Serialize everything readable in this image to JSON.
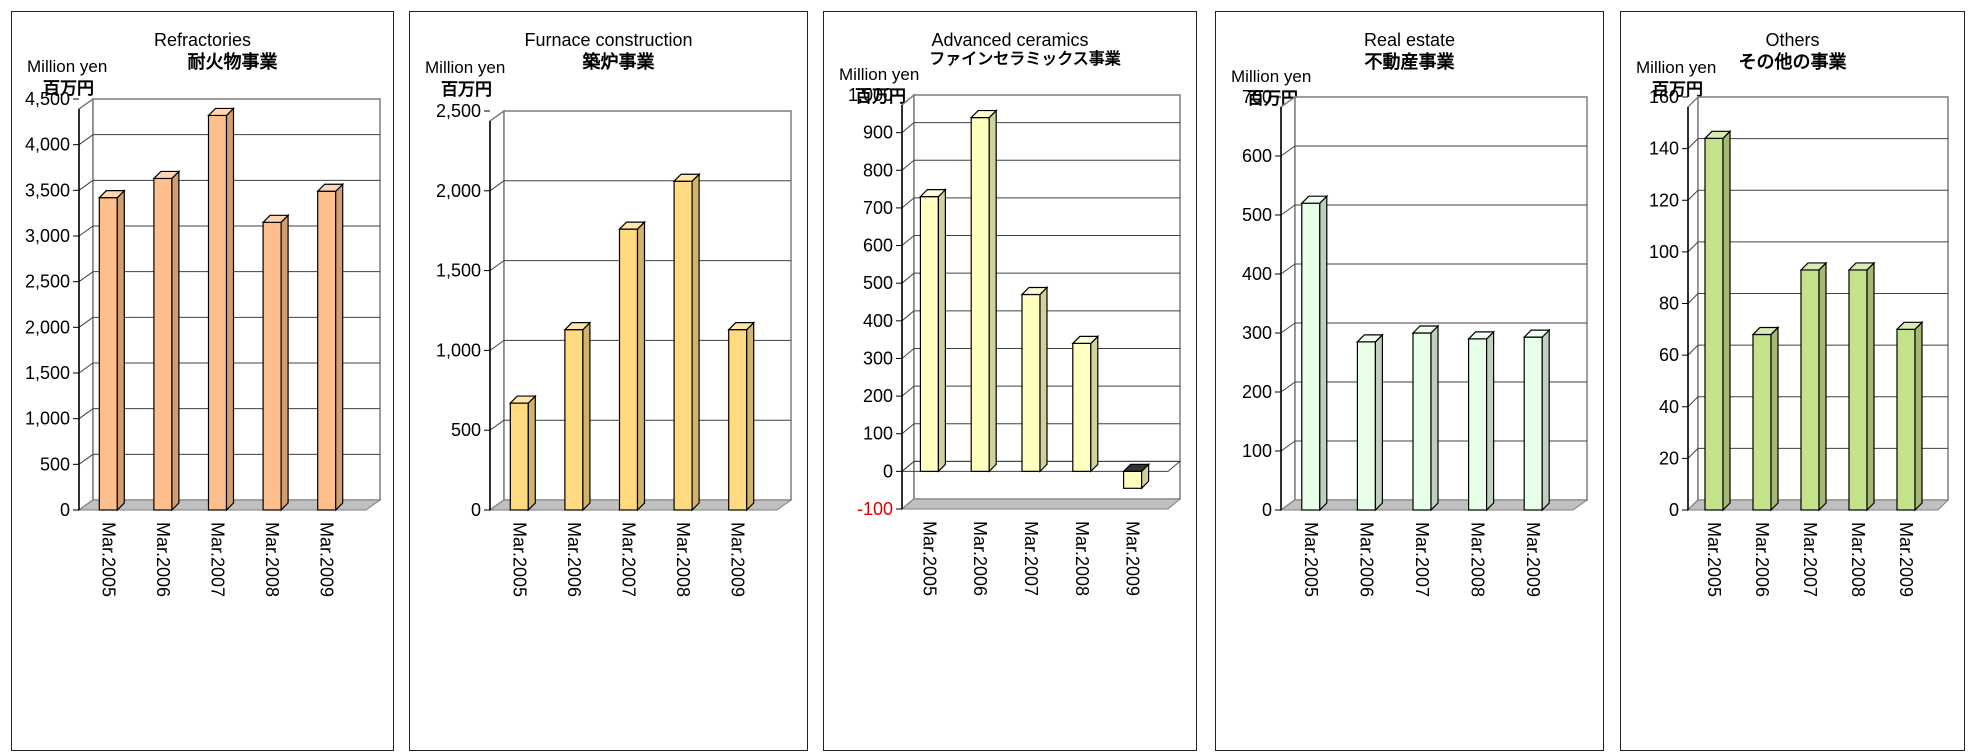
{
  "chart_data": [
    {
      "type": "bar",
      "title": "Refractories",
      "subtitle": "耐火物事業",
      "ylabel": "Million yen",
      "ylabel2": "百万円",
      "categories": [
        "Mar.2005",
        "Mar.2006",
        "Mar.2007",
        "Mar.2008",
        "Mar.2009"
      ],
      "values": [
        3420,
        3630,
        4320,
        3150,
        3490
      ],
      "ylim": [
        0,
        4500
      ],
      "yticks": [
        "0",
        "500",
        "1,000",
        "1,500",
        "2,000",
        "2,500",
        "3,000",
        "3,500",
        "4,000",
        "4,500"
      ],
      "color": "#FFBF8C"
    },
    {
      "type": "bar",
      "title": "Furnace construction",
      "subtitle": "築炉事業",
      "ylabel": "Million yen",
      "ylabel2": "百万円",
      "categories": [
        "Mar.2005",
        "Mar.2006",
        "Mar.2007",
        "Mar.2008",
        "Mar.2009"
      ],
      "values": [
        670,
        1130,
        1760,
        2060,
        1130
      ],
      "ylim": [
        0,
        2500
      ],
      "yticks": [
        "0",
        "500",
        "1,000",
        "1,500",
        "2,000",
        "2,500"
      ],
      "color": "#FFDA80"
    },
    {
      "type": "bar",
      "title": "Advanced ceramics",
      "subtitle": "ファインセラミックス事業",
      "ylabel": "Million yen",
      "ylabel2": "百万円",
      "categories": [
        "Mar.2005",
        "Mar.2006",
        "Mar.2007",
        "Mar.2008",
        "Mar.2009"
      ],
      "values": [
        730,
        940,
        470,
        340,
        -45
      ],
      "ylim": [
        -100,
        1000
      ],
      "yticks": [
        "-100",
        "0",
        "100",
        "200",
        "300",
        "400",
        "500",
        "600",
        "700",
        "800",
        "900",
        "1,000"
      ],
      "negative_tick_color": "#E00000",
      "color": "#FFFFC0"
    },
    {
      "type": "bar",
      "title": "Real estate",
      "subtitle": "不動産事業",
      "ylabel": "Million yen",
      "ylabel2": "百万円",
      "categories": [
        "Mar.2005",
        "Mar.2006",
        "Mar.2007",
        "Mar.2008",
        "Mar.2009"
      ],
      "values": [
        520,
        285,
        300,
        290,
        293
      ],
      "ylim": [
        0,
        700
      ],
      "yticks": [
        "0",
        "100",
        "200",
        "300",
        "400",
        "500",
        "600",
        "700"
      ],
      "color": "#E8FFE8"
    },
    {
      "type": "bar",
      "title": "Others",
      "subtitle": "その他の事業",
      "ylabel": "Million yen",
      "ylabel2": "百万円",
      "categories": [
        "Mar.2005",
        "Mar.2006",
        "Mar.2007",
        "Mar.2008",
        "Mar.2009"
      ],
      "values": [
        144,
        68,
        93,
        93,
        70
      ],
      "ylim": [
        0,
        160
      ],
      "yticks": [
        "0",
        "20",
        "40",
        "60",
        "80",
        "100",
        "120",
        "140",
        "160"
      ],
      "color": "#C4E28A"
    }
  ]
}
